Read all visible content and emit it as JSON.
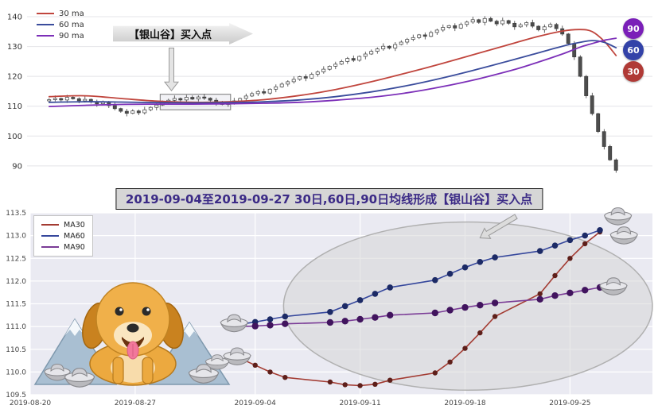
{
  "icons": {
    "ingot": "silver-sycee",
    "mascot": "golden-retriever-puppy",
    "mountains": "snow-mountains",
    "arrow": "gray-block-arrow"
  },
  "chart_data": [
    {
      "name": "price-overview",
      "type": "candlestick",
      "ylim": [
        86.5,
        144
      ],
      "yticks": [
        90,
        100,
        110,
        120,
        130,
        140
      ],
      "legend": [
        {
          "label": "30 ma",
          "color": "#c0453d"
        },
        {
          "label": "60 ma",
          "color": "#3a4c9c"
        },
        {
          "label": "90 ma",
          "color": "#7c2fb8"
        }
      ],
      "annotation": "【银山谷】买入点",
      "badges": [
        {
          "label": "90",
          "color": "#7a1fb8"
        },
        {
          "label": "60",
          "color": "#3342a8"
        },
        {
          "label": "30",
          "color": "#b03a36"
        }
      ],
      "wick_pattern": [
        0.5,
        1.0,
        0.3,
        0.8,
        0.6
      ],
      "closes": [
        112.2,
        112.6,
        112.1,
        113.0,
        112.5,
        111.8,
        112.3,
        111.4,
        110.8,
        111.3,
        110.2,
        109.2,
        108.3,
        107.6,
        108.4,
        107.8,
        108.8,
        109.6,
        110.4,
        111.3,
        112.0,
        112.6,
        112.1,
        113.0,
        112.4,
        113.1,
        112.7,
        112.0,
        111.2,
        110.6,
        111.1,
        111.8,
        112.6,
        113.4,
        114.2,
        114.9,
        114.4,
        115.7,
        116.5,
        117.4,
        118.2,
        119.0,
        119.9,
        119.4,
        120.7,
        121.5,
        122.4,
        123.4,
        124.1,
        125.0,
        126.0,
        125.4,
        126.7,
        127.5,
        128.4,
        129.2,
        130.1,
        129.5,
        130.7,
        131.5,
        132.4,
        133.0,
        133.9,
        133.4,
        134.7,
        135.5,
        136.4,
        137.0,
        136.2,
        137.4,
        138.2,
        139.0,
        138.1,
        139.4,
        138.5,
        137.6,
        138.7,
        137.8,
        136.6,
        137.3,
        138.0,
        136.8,
        135.6,
        136.6,
        137.4,
        136.0,
        134.2,
        131.0,
        126.5,
        120.0,
        113.5,
        107.5,
        101.5,
        96.5,
        92.0,
        88.5
      ],
      "series": [
        {
          "name": "30 ma",
          "color": "#c0453d",
          "points": [
            [
              0,
              113.2
            ],
            [
              6,
              113.5
            ],
            [
              12,
              112.6
            ],
            [
              18,
              111.7
            ],
            [
              24,
              111.3
            ],
            [
              30,
              111.5
            ],
            [
              36,
              112.2
            ],
            [
              42,
              113.6
            ],
            [
              48,
              115.6
            ],
            [
              54,
              118.2
            ],
            [
              60,
              121.2
            ],
            [
              66,
              124.4
            ],
            [
              72,
              127.8
            ],
            [
              78,
              131.2
            ],
            [
              82,
              133.4
            ],
            [
              86,
              135.2
            ],
            [
              89,
              135.7
            ],
            [
              91,
              135.0
            ],
            [
              93,
              131.8
            ],
            [
              95,
              127.0
            ]
          ]
        },
        {
          "name": "60 ma",
          "color": "#3a4c9c",
          "points": [
            [
              0,
              111.3
            ],
            [
              6,
              111.5
            ],
            [
              12,
              111.4
            ],
            [
              18,
              111.2
            ],
            [
              24,
              111.1
            ],
            [
              30,
              111.2
            ],
            [
              36,
              111.5
            ],
            [
              42,
              112.1
            ],
            [
              48,
              113.2
            ],
            [
              54,
              114.8
            ],
            [
              60,
              116.9
            ],
            [
              66,
              119.5
            ],
            [
              72,
              122.5
            ],
            [
              78,
              125.7
            ],
            [
              82,
              127.9
            ],
            [
              86,
              130.1
            ],
            [
              89,
              131.4
            ],
            [
              91,
              132.0
            ],
            [
              93,
              131.4
            ],
            [
              95,
              129.6
            ]
          ]
        },
        {
          "name": "90 ma",
          "color": "#7c2fb8",
          "points": [
            [
              0,
              109.9
            ],
            [
              6,
              110.3
            ],
            [
              12,
              110.6
            ],
            [
              18,
              110.7
            ],
            [
              24,
              110.7
            ],
            [
              30,
              110.8
            ],
            [
              36,
              111.0
            ],
            [
              42,
              111.3
            ],
            [
              48,
              112.0
            ],
            [
              54,
              113.0
            ],
            [
              60,
              114.5
            ],
            [
              66,
              116.6
            ],
            [
              72,
              119.2
            ],
            [
              78,
              122.3
            ],
            [
              82,
              124.8
            ],
            [
              86,
              127.5
            ],
            [
              89,
              129.8
            ],
            [
              91,
              131.0
            ],
            [
              93,
              132.1
            ],
            [
              95,
              132.8
            ]
          ]
        }
      ],
      "highlight_box": {
        "x0": 19,
        "x1": 30,
        "v0": 108.8,
        "v1": 114.0
      },
      "arrow": {
        "i": 20.5,
        "from": 129.5,
        "to": 115.2
      }
    },
    {
      "name": "ma-detail",
      "type": "line",
      "title": "2019-09-04至2019-09-27 30日,60日,90日均线形成【银山谷】买入点",
      "ylim": [
        109.5,
        113.5
      ],
      "yticks": [
        109.5,
        110.0,
        110.5,
        111.0,
        111.5,
        112.0,
        112.5,
        113.0,
        113.5
      ],
      "xlim": [
        0,
        41.5
      ],
      "xticks": [
        {
          "label": "2019-08-20",
          "day": 0
        },
        {
          "label": "2019-08-27",
          "day": 7
        },
        {
          "label": "2019-09-04",
          "day": 15
        },
        {
          "label": "2019-09-11",
          "day": 22
        },
        {
          "label": "2019-09-18",
          "day": 29
        },
        {
          "label": "2019-09-25",
          "day": 36
        }
      ],
      "series": [
        {
          "name": "MA30",
          "color": "#a33b32",
          "marker": "#5e1f1a",
          "marker_r": 3.2,
          "days": [
            14,
            15,
            16,
            17,
            20,
            21,
            22,
            23,
            24,
            27,
            28,
            29,
            30,
            31,
            34,
            35,
            36,
            37,
            38
          ],
          "values": [
            110.3,
            110.15,
            110.0,
            109.88,
            109.78,
            109.72,
            109.7,
            109.73,
            109.82,
            109.98,
            110.22,
            110.52,
            110.86,
            111.22,
            111.72,
            112.12,
            112.5,
            112.82,
            113.08
          ]
        },
        {
          "name": "MA60",
          "color": "#35479c",
          "marker": "#1c2a66",
          "marker_r": 3.8,
          "days": [
            14,
            15,
            16,
            17,
            20,
            21,
            22,
            23,
            24,
            27,
            28,
            29,
            30,
            31,
            34,
            35,
            36,
            37,
            38
          ],
          "values": [
            111.05,
            111.1,
            111.16,
            111.22,
            111.32,
            111.45,
            111.58,
            111.72,
            111.86,
            112.02,
            112.16,
            112.3,
            112.42,
            112.52,
            112.66,
            112.78,
            112.9,
            113.0,
            113.12
          ]
        },
        {
          "name": "MA90",
          "color": "#7a3b96",
          "marker": "#41145e",
          "marker_r": 4.2,
          "days": [
            14,
            15,
            16,
            17,
            20,
            21,
            22,
            23,
            24,
            27,
            28,
            29,
            30,
            31,
            34,
            35,
            36,
            37,
            38
          ],
          "values": [
            111.0,
            111.01,
            111.03,
            111.06,
            111.09,
            111.12,
            111.16,
            111.2,
            111.25,
            111.3,
            111.36,
            111.42,
            111.47,
            111.52,
            111.6,
            111.68,
            111.74,
            111.8,
            111.86
          ]
        }
      ],
      "ellipse": {
        "day": 29.2,
        "value": 111.45,
        "rx_days": 12.3,
        "ry_units": 1.85
      },
      "arrow": {
        "from_day": 32.4,
        "from_value": 113.42,
        "to_day": 30.0,
        "to_value": 112.95
      },
      "ingots": [
        {
          "day": 13.6,
          "value": 111.05
        },
        {
          "day": 13.8,
          "value": 110.32
        },
        {
          "day": 39.2,
          "value": 113.4
        },
        {
          "day": 39.6,
          "value": 112.98
        },
        {
          "day": 38.9,
          "value": 111.86
        }
      ]
    }
  ]
}
